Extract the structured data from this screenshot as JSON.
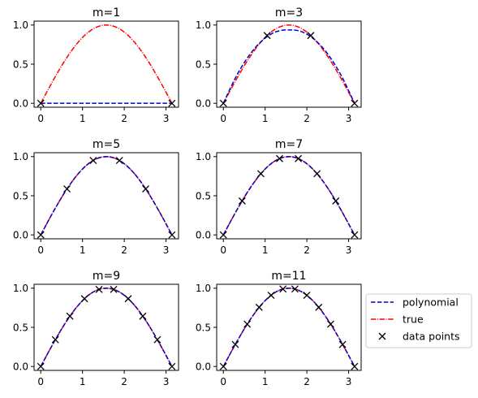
{
  "chart_data": {
    "type": "line",
    "figure": "grid of 6 subplots (3 rows x 2 columns)",
    "colors": {
      "polynomial": "#0000cc",
      "true": "#ff0000",
      "data_points": "#000000"
    },
    "line_styles": {
      "polynomial": "dashed",
      "true": "dash-dot",
      "data_points": "x markers"
    },
    "legend": {
      "placement": "right of the bottom-right subplot",
      "entries": [
        "polynomial",
        "true",
        "data points"
      ]
    },
    "true_function": "sin(x)",
    "xlim": [
      -0.16,
      3.3
    ],
    "ylim": [
      -0.05,
      1.05
    ],
    "xticks": [
      0,
      1,
      2,
      3
    ],
    "yticks": [
      0.0,
      0.5,
      1.0
    ],
    "xtick_labels": [
      "0",
      "1",
      "2",
      "3"
    ],
    "ytick_labels": [
      "0.0",
      "0.5",
      "1.0"
    ],
    "subplots": [
      {
        "title": "m=1",
        "data_points": [
          [
            0,
            0
          ],
          [
            3.1416,
            0
          ]
        ],
        "polynomial": [
          [
            0,
            0
          ],
          [
            3.1416,
            0
          ]
        ]
      },
      {
        "title": "m=3",
        "data_points": [
          [
            0,
            0
          ],
          [
            1.0472,
            0.866
          ],
          [
            2.0944,
            0.866
          ],
          [
            3.1416,
            0
          ]
        ],
        "polynomial": [
          [
            0,
            0
          ],
          [
            0.3142,
            0.3508
          ],
          [
            0.6283,
            0.6198
          ],
          [
            0.9425,
            0.8073
          ],
          [
            1.2566,
            0.9135
          ],
          [
            1.5708,
            0.9375
          ],
          [
            1.885,
            0.9135
          ],
          [
            2.1991,
            0.8073
          ],
          [
            2.5133,
            0.6198
          ],
          [
            2.8274,
            0.3508
          ],
          [
            3.1416,
            0
          ]
        ]
      },
      {
        "title": "m=5",
        "data_points": [
          [
            0,
            0
          ],
          [
            0.6283,
            0.5878
          ],
          [
            1.2566,
            0.9511
          ],
          [
            1.885,
            0.9511
          ],
          [
            2.5133,
            0.5878
          ],
          [
            3.1416,
            0
          ]
        ],
        "polynomial": [
          [
            0,
            0
          ],
          [
            0.3142,
            0.3087
          ],
          [
            0.6283,
            0.5878
          ],
          [
            0.9425,
            0.8091
          ],
          [
            1.2566,
            0.9511
          ],
          [
            1.5708,
            1.0
          ],
          [
            1.885,
            0.9511
          ],
          [
            2.1991,
            0.8091
          ],
          [
            2.5133,
            0.5878
          ],
          [
            2.8274,
            0.3087
          ],
          [
            3.1416,
            0
          ]
        ]
      },
      {
        "title": "m=7",
        "data_points": [
          [
            0,
            0
          ],
          [
            0.4488,
            0.4339
          ],
          [
            0.8976,
            0.7818
          ],
          [
            1.3464,
            0.9749
          ],
          [
            1.7952,
            0.9749
          ],
          [
            2.244,
            0.7818
          ],
          [
            2.6928,
            0.4339
          ],
          [
            3.1416,
            0
          ]
        ],
        "polynomial": [
          [
            0,
            0
          ],
          [
            0.3142,
            0.309
          ],
          [
            0.6283,
            0.5878
          ],
          [
            0.9425,
            0.809
          ],
          [
            1.2566,
            0.9511
          ],
          [
            1.5708,
            1.0
          ],
          [
            1.885,
            0.9511
          ],
          [
            2.1991,
            0.809
          ],
          [
            2.5133,
            0.5878
          ],
          [
            2.8274,
            0.309
          ],
          [
            3.1416,
            0
          ]
        ]
      },
      {
        "title": "m=9",
        "data_points": [
          [
            0,
            0
          ],
          [
            0.3491,
            0.342
          ],
          [
            0.6981,
            0.6428
          ],
          [
            1.0472,
            0.866
          ],
          [
            1.3963,
            0.9848
          ],
          [
            1.7453,
            0.9848
          ],
          [
            2.0944,
            0.866
          ],
          [
            2.4435,
            0.6428
          ],
          [
            2.7925,
            0.342
          ],
          [
            3.1416,
            0
          ]
        ],
        "polynomial": [
          [
            0,
            0
          ],
          [
            0.3142,
            0.309
          ],
          [
            0.6283,
            0.5878
          ],
          [
            0.9425,
            0.809
          ],
          [
            1.2566,
            0.9511
          ],
          [
            1.5708,
            1.0
          ],
          [
            1.885,
            0.9511
          ],
          [
            2.1991,
            0.809
          ],
          [
            2.5133,
            0.5878
          ],
          [
            2.8274,
            0.309
          ],
          [
            3.1416,
            0
          ]
        ]
      },
      {
        "title": "m=11",
        "data_points": [
          [
            0,
            0
          ],
          [
            0.2856,
            0.2817
          ],
          [
            0.5712,
            0.5406
          ],
          [
            0.8568,
            0.7557
          ],
          [
            1.1424,
            0.9096
          ],
          [
            1.428,
            0.9898
          ],
          [
            1.7136,
            0.9898
          ],
          [
            1.9992,
            0.9096
          ],
          [
            2.2848,
            0.7557
          ],
          [
            2.5704,
            0.5406
          ],
          [
            2.856,
            0.2817
          ],
          [
            3.1416,
            0
          ]
        ],
        "polynomial": [
          [
            0,
            0
          ],
          [
            0.3142,
            0.309
          ],
          [
            0.6283,
            0.5878
          ],
          [
            0.9425,
            0.809
          ],
          [
            1.2566,
            0.9511
          ],
          [
            1.5708,
            1.0
          ],
          [
            1.885,
            0.9511
          ],
          [
            2.1991,
            0.809
          ],
          [
            2.5133,
            0.5878
          ],
          [
            2.8274,
            0.309
          ],
          [
            3.1416,
            0
          ]
        ]
      }
    ]
  }
}
